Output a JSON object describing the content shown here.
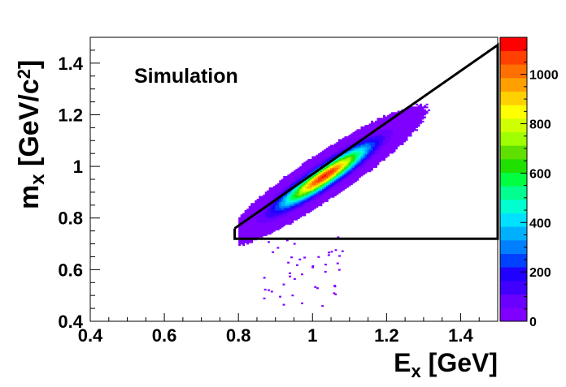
{
  "chart_data": {
    "type": "heatmap",
    "annotation": "Simulation",
    "xlabel": {
      "main": "E",
      "sub": "x",
      "unit": " [GeV]"
    },
    "ylabel": {
      "main": "m",
      "sub": "x",
      "unit": " [GeV/c",
      "sup": "2",
      "close": "]"
    },
    "xlim": [
      0.4,
      1.5
    ],
    "ylim": [
      0.4,
      1.5
    ],
    "x_ticks": [
      0.4,
      0.6,
      0.8,
      1,
      1.2,
      1.4
    ],
    "y_ticks": [
      0.4,
      0.6,
      0.8,
      1,
      1.2,
      1.4
    ],
    "x_tick_labels": [
      "0.4",
      "0.6",
      "0.8",
      "1",
      "1.2",
      "1.4"
    ],
    "y_tick_labels": [
      "0.4",
      "0.6",
      "0.8",
      "1",
      "1.2",
      "1.4"
    ],
    "colorbar": {
      "min": 0,
      "max": 1150,
      "ticks": [
        0,
        200,
        400,
        600,
        800,
        1000
      ],
      "tick_labels": [
        "0",
        "200",
        "400",
        "600",
        "800",
        "1000"
      ],
      "colors": [
        "#7f00ff",
        "#6a00ff",
        "#3f00ff",
        "#2000ff",
        "#0040ff",
        "#0080ff",
        "#00b0ff",
        "#00e0ff",
        "#00ffd0",
        "#00ff90",
        "#00ff40",
        "#20e000",
        "#60e000",
        "#a0ff00",
        "#d0ff00",
        "#ffff00",
        "#ffd000",
        "#ffa000",
        "#ff7000",
        "#ff4000",
        "#ff0000"
      ]
    },
    "distribution": {
      "description": "2D histogram of simulated events concentrated along a band",
      "peak": {
        "x": 1.03,
        "y": 0.96,
        "count": 1100
      },
      "band_slope": 0.92,
      "bin_width": 0.0055
    },
    "cut_polygon": {
      "vertices": [
        [
          0.79,
          0.76
        ],
        [
          1.5,
          1.47
        ],
        [
          1.5,
          0.72
        ],
        [
          0.79,
          0.72
        ],
        [
          0.79,
          0.76
        ]
      ]
    }
  }
}
